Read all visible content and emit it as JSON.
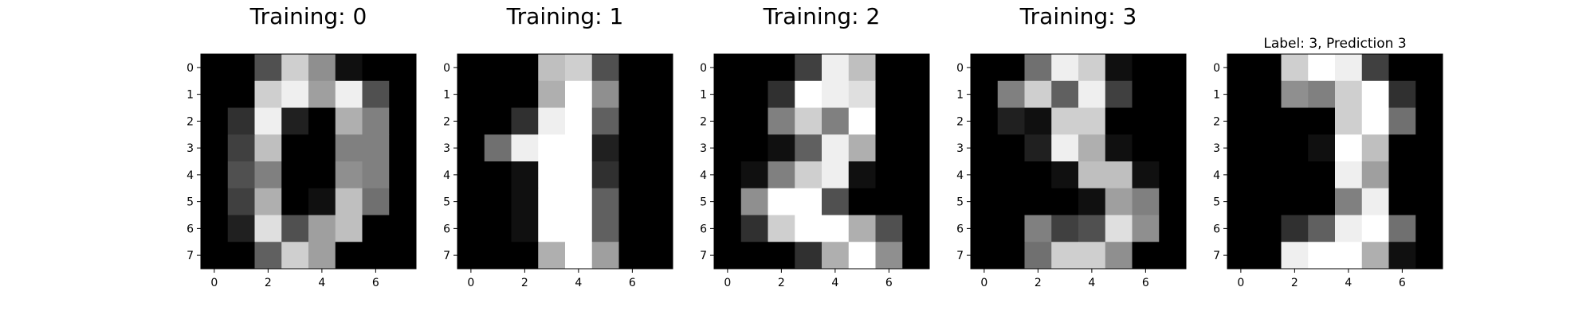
{
  "chart_data": [
    {
      "type": "heatmap",
      "title": "Training: 0",
      "colormap": "gray",
      "vlim": [
        0,
        16
      ],
      "x_ticks": [
        "0",
        "2",
        "4",
        "6"
      ],
      "y_ticks": [
        "0",
        "1",
        "2",
        "3",
        "4",
        "5",
        "6",
        "7"
      ],
      "values": [
        [
          0,
          0,
          5,
          13,
          9,
          1,
          0,
          0
        ],
        [
          0,
          0,
          13,
          15,
          10,
          15,
          5,
          0
        ],
        [
          0,
          3,
          15,
          2,
          0,
          11,
          8,
          0
        ],
        [
          0,
          4,
          12,
          0,
          0,
          8,
          8,
          0
        ],
        [
          0,
          5,
          8,
          0,
          0,
          9,
          8,
          0
        ],
        [
          0,
          4,
          11,
          0,
          1,
          12,
          7,
          0
        ],
        [
          0,
          2,
          14,
          5,
          10,
          12,
          0,
          0
        ],
        [
          0,
          0,
          6,
          13,
          10,
          0,
          0,
          0
        ]
      ]
    },
    {
      "type": "heatmap",
      "title": "Training: 1",
      "colormap": "gray",
      "vlim": [
        0,
        16
      ],
      "x_ticks": [
        "0",
        "2",
        "4",
        "6"
      ],
      "y_ticks": [
        "0",
        "1",
        "2",
        "3",
        "4",
        "5",
        "6",
        "7"
      ],
      "values": [
        [
          0,
          0,
          0,
          12,
          13,
          5,
          0,
          0
        ],
        [
          0,
          0,
          0,
          11,
          16,
          9,
          0,
          0
        ],
        [
          0,
          0,
          3,
          15,
          16,
          6,
          0,
          0
        ],
        [
          0,
          7,
          15,
          16,
          16,
          2,
          0,
          0
        ],
        [
          0,
          0,
          1,
          16,
          16,
          3,
          0,
          0
        ],
        [
          0,
          0,
          1,
          16,
          16,
          6,
          0,
          0
        ],
        [
          0,
          0,
          1,
          16,
          16,
          6,
          0,
          0
        ],
        [
          0,
          0,
          0,
          11,
          16,
          10,
          0,
          0
        ]
      ]
    },
    {
      "type": "heatmap",
      "title": "Training: 2",
      "colormap": "gray",
      "vlim": [
        0,
        16
      ],
      "x_ticks": [
        "0",
        "2",
        "4",
        "6"
      ],
      "y_ticks": [
        "0",
        "1",
        "2",
        "3",
        "4",
        "5",
        "6",
        "7"
      ],
      "values": [
        [
          0,
          0,
          0,
          4,
          15,
          12,
          0,
          0
        ],
        [
          0,
          0,
          3,
          16,
          15,
          14,
          0,
          0
        ],
        [
          0,
          0,
          8,
          13,
          8,
          16,
          0,
          0
        ],
        [
          0,
          0,
          1,
          6,
          15,
          11,
          0,
          0
        ],
        [
          0,
          1,
          8,
          13,
          15,
          1,
          0,
          0
        ],
        [
          0,
          9,
          16,
          16,
          5,
          0,
          0,
          0
        ],
        [
          0,
          3,
          13,
          16,
          16,
          11,
          5,
          0
        ],
        [
          0,
          0,
          0,
          3,
          11,
          16,
          9,
          0
        ]
      ]
    },
    {
      "type": "heatmap",
      "title": "Training: 3",
      "colormap": "gray",
      "vlim": [
        0,
        16
      ],
      "x_ticks": [
        "0",
        "2",
        "4",
        "6"
      ],
      "y_ticks": [
        "0",
        "1",
        "2",
        "3",
        "4",
        "5",
        "6",
        "7"
      ],
      "values": [
        [
          0,
          0,
          7,
          15,
          13,
          1,
          0,
          0
        ],
        [
          0,
          8,
          13,
          6,
          15,
          4,
          0,
          0
        ],
        [
          0,
          2,
          1,
          13,
          13,
          0,
          0,
          0
        ],
        [
          0,
          0,
          2,
          15,
          11,
          1,
          0,
          0
        ],
        [
          0,
          0,
          0,
          1,
          12,
          12,
          1,
          0
        ],
        [
          0,
          0,
          0,
          0,
          1,
          10,
          8,
          0
        ],
        [
          0,
          0,
          8,
          4,
          5,
          14,
          9,
          0
        ],
        [
          0,
          0,
          7,
          13,
          13,
          9,
          0,
          0
        ]
      ]
    },
    {
      "type": "heatmap",
      "title": "Label: 3, Prediction 3",
      "colormap": "gray",
      "vlim": [
        0,
        16
      ],
      "x_ticks": [
        "0",
        "2",
        "4",
        "6"
      ],
      "y_ticks": [
        "0",
        "1",
        "2",
        "3",
        "4",
        "5",
        "6",
        "7"
      ],
      "values": [
        [
          0,
          0,
          13,
          16,
          15,
          4,
          0,
          0
        ],
        [
          0,
          0,
          9,
          8,
          13,
          16,
          3,
          0
        ],
        [
          0,
          0,
          0,
          0,
          13,
          16,
          7,
          0
        ],
        [
          0,
          0,
          0,
          1,
          16,
          12,
          0,
          0
        ],
        [
          0,
          0,
          0,
          0,
          15,
          10,
          0,
          0
        ],
        [
          0,
          0,
          0,
          0,
          8,
          15,
          0,
          0
        ],
        [
          0,
          0,
          3,
          6,
          15,
          16,
          7,
          0
        ],
        [
          0,
          0,
          15,
          16,
          16,
          11,
          1,
          0
        ]
      ]
    }
  ]
}
